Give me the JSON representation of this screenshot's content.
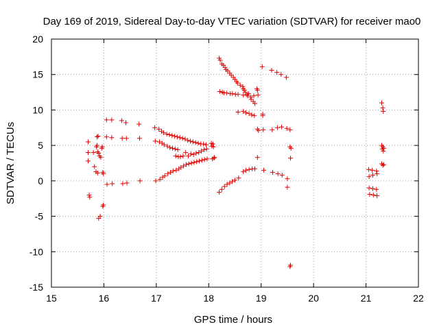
{
  "chart_data": {
    "type": "scatter",
    "title": "Day 169 of 2019, Sidereal Day-to-day VTEC variation (SDTVAR) for receiver mao0",
    "xlabel": "GPS time / hours",
    "ylabel": "SDTVAR / TECUs",
    "xlim": [
      15,
      22
    ],
    "ylim": [
      -15,
      20
    ],
    "xticks": [
      15,
      16,
      17,
      18,
      19,
      20,
      21,
      22
    ],
    "yticks": [
      -15,
      -10,
      -5,
      0,
      5,
      10,
      15,
      20
    ],
    "grid": true,
    "marker": "+",
    "series_color": "#e00000",
    "series": [
      {
        "name": "SDTVAR",
        "points": [
          [
            15.7,
            5.5
          ],
          [
            15.7,
            4.0
          ],
          [
            15.7,
            2.8
          ],
          [
            15.72,
            -2.0
          ],
          [
            15.73,
            -2.3
          ],
          [
            15.8,
            4.0
          ],
          [
            15.82,
            2.0
          ],
          [
            15.85,
            1.3
          ],
          [
            15.86,
            4.8
          ],
          [
            15.87,
            5.0
          ],
          [
            15.87,
            6.2
          ],
          [
            15.88,
            1.1
          ],
          [
            15.88,
            4.1
          ],
          [
            15.89,
            6.3
          ],
          [
            15.9,
            3.9
          ],
          [
            15.9,
            -5.3
          ],
          [
            15.92,
            3.5
          ],
          [
            15.93,
            -5.0
          ],
          [
            15.94,
            3.3
          ],
          [
            15.96,
            4.6
          ],
          [
            15.97,
            4.8
          ],
          [
            15.98,
            1.2
          ],
          [
            15.99,
            1.0
          ],
          [
            15.98,
            -3.6
          ],
          [
            15.99,
            -3.4
          ],
          [
            16.05,
            8.6
          ],
          [
            16.05,
            6.2
          ],
          [
            16.06,
            -0.5
          ],
          [
            16.15,
            8.6
          ],
          [
            16.15,
            6.1
          ],
          [
            16.16,
            -0.4
          ],
          [
            16.34,
            8.5
          ],
          [
            16.35,
            6.0
          ],
          [
            16.36,
            -0.4
          ],
          [
            16.42,
            8.2
          ],
          [
            16.43,
            6.0
          ],
          [
            16.44,
            -0.3
          ],
          [
            16.67,
            8.0
          ],
          [
            16.68,
            6.0
          ],
          [
            16.69,
            0.0
          ],
          [
            16.97,
            7.5
          ],
          [
            16.98,
            5.6
          ],
          [
            16.99,
            0.0
          ],
          [
            17.05,
            7.3
          ],
          [
            17.06,
            5.5
          ],
          [
            17.07,
            0.2
          ],
          [
            17.1,
            7.0
          ],
          [
            17.11,
            5.3
          ],
          [
            17.12,
            0.5
          ],
          [
            17.14,
            6.8
          ],
          [
            17.15,
            5.1
          ],
          [
            17.16,
            0.7
          ],
          [
            17.2,
            6.6
          ],
          [
            17.21,
            4.9
          ],
          [
            17.22,
            1.0
          ],
          [
            17.25,
            6.5
          ],
          [
            17.26,
            4.7
          ],
          [
            17.27,
            1.2
          ],
          [
            17.3,
            6.4
          ],
          [
            17.31,
            4.6
          ],
          [
            17.32,
            1.4
          ],
          [
            17.35,
            6.3
          ],
          [
            17.36,
            4.5
          ],
          [
            17.37,
            3.5
          ],
          [
            17.38,
            1.5
          ],
          [
            17.4,
            6.2
          ],
          [
            17.41,
            4.4
          ],
          [
            17.42,
            3.4
          ],
          [
            17.43,
            1.7
          ],
          [
            17.45,
            6.1
          ],
          [
            17.46,
            3.4
          ],
          [
            17.47,
            1.9
          ],
          [
            17.5,
            6.0
          ],
          [
            17.51,
            3.5
          ],
          [
            17.52,
            2.1
          ],
          [
            17.55,
            5.9
          ],
          [
            17.56,
            4.0
          ],
          [
            17.57,
            2.3
          ],
          [
            17.6,
            5.7
          ],
          [
            17.61,
            3.5
          ],
          [
            17.62,
            2.4
          ],
          [
            17.65,
            5.6
          ],
          [
            17.66,
            3.8
          ],
          [
            17.67,
            2.5
          ],
          [
            17.7,
            5.5
          ],
          [
            17.71,
            3.7
          ],
          [
            17.72,
            2.6
          ],
          [
            17.75,
            5.4
          ],
          [
            17.76,
            3.9
          ],
          [
            17.77,
            2.7
          ],
          [
            17.8,
            5.3
          ],
          [
            17.81,
            4.0
          ],
          [
            17.82,
            2.8
          ],
          [
            17.85,
            5.2
          ],
          [
            17.86,
            4.2
          ],
          [
            17.87,
            2.9
          ],
          [
            17.9,
            5.2
          ],
          [
            17.91,
            4.4
          ],
          [
            17.92,
            3.0
          ],
          [
            17.95,
            5.1
          ],
          [
            17.96,
            4.5
          ],
          [
            17.97,
            3.1
          ],
          [
            18.05,
            5.3
          ],
          [
            18.06,
            4.9
          ],
          [
            18.07,
            3.1
          ],
          [
            18.08,
            5.2
          ],
          [
            18.09,
            4.8
          ],
          [
            18.1,
            3.2
          ],
          [
            18.11,
            3.3
          ],
          [
            18.2,
            17.3
          ],
          [
            18.22,
            17.0
          ],
          [
            18.21,
            12.6
          ],
          [
            18.2,
            -1.6
          ],
          [
            18.25,
            16.5
          ],
          [
            18.26,
            12.5
          ],
          [
            18.25,
            -1.2
          ],
          [
            18.28,
            16.3
          ],
          [
            18.29,
            12.4
          ],
          [
            18.3,
            -0.8
          ],
          [
            18.31,
            16.0
          ],
          [
            18.33,
            15.7
          ],
          [
            18.34,
            12.4
          ],
          [
            18.35,
            -0.5
          ],
          [
            18.36,
            15.5
          ],
          [
            18.4,
            15.2
          ],
          [
            18.41,
            12.3
          ],
          [
            18.4,
            -0.3
          ],
          [
            18.43,
            14.9
          ],
          [
            18.45,
            12.3
          ],
          [
            18.45,
            -0.1
          ],
          [
            18.47,
            14.6
          ],
          [
            18.5,
            14.3
          ],
          [
            18.51,
            12.2
          ],
          [
            18.5,
            0.1
          ],
          [
            18.53,
            14.0
          ],
          [
            18.55,
            13.8
          ],
          [
            18.56,
            12.2
          ],
          [
            18.56,
            9.7
          ],
          [
            18.57,
            0.4
          ],
          [
            18.6,
            13.5
          ],
          [
            18.65,
            13.3
          ],
          [
            18.66,
            13.0
          ],
          [
            18.66,
            12.1
          ],
          [
            18.66,
            9.8
          ],
          [
            18.66,
            1.3
          ],
          [
            18.68,
            12.8
          ],
          [
            18.7,
            12.5
          ],
          [
            18.71,
            9.6
          ],
          [
            18.71,
            1.5
          ],
          [
            18.73,
            12.2
          ],
          [
            18.74,
            12.0
          ],
          [
            18.76,
            12.3
          ],
          [
            18.77,
            9.5
          ],
          [
            18.77,
            1.6
          ],
          [
            18.8,
            11.8
          ],
          [
            18.81,
            11.5
          ],
          [
            18.82,
            9.3
          ],
          [
            18.83,
            1.7
          ],
          [
            18.85,
            11.2
          ],
          [
            18.86,
            12.0
          ],
          [
            18.87,
            9.2
          ],
          [
            18.88,
            1.7
          ],
          [
            18.88,
            10.9
          ],
          [
            18.92,
            13.0
          ],
          [
            18.93,
            12.8
          ],
          [
            18.94,
            12.1
          ],
          [
            18.93,
            7.3
          ],
          [
            18.93,
            3.3
          ],
          [
            18.95,
            7.1
          ],
          [
            19.02,
            16.1
          ],
          [
            19.03,
            9.4
          ],
          [
            19.04,
            7.2
          ],
          [
            19.05,
            1.5
          ],
          [
            19.03,
            9.2
          ],
          [
            19.2,
            15.6
          ],
          [
            19.21,
            7.2
          ],
          [
            19.22,
            1.2
          ],
          [
            19.3,
            15.3
          ],
          [
            19.31,
            7.5
          ],
          [
            19.32,
            1.0
          ],
          [
            19.38,
            15.0
          ],
          [
            19.39,
            7.6
          ],
          [
            19.4,
            0.8
          ],
          [
            19.48,
            14.6
          ],
          [
            19.49,
            7.4
          ],
          [
            19.5,
            0.3
          ],
          [
            19.5,
            -0.9
          ],
          [
            19.55,
            7.2
          ],
          [
            19.55,
            4.8
          ],
          [
            19.57,
            4.6
          ],
          [
            19.56,
            3.2
          ],
          [
            19.55,
            -12.1
          ],
          [
            19.56,
            -11.9
          ],
          [
            21.05,
            1.6
          ],
          [
            21.06,
            0.6
          ],
          [
            21.06,
            -1.0
          ],
          [
            21.07,
            -1.9
          ],
          [
            21.12,
            1.5
          ],
          [
            21.13,
            0.8
          ],
          [
            21.13,
            -1.1
          ],
          [
            21.14,
            -2.0
          ],
          [
            21.2,
            1.4
          ],
          [
            21.21,
            1.0
          ],
          [
            21.2,
            -1.2
          ],
          [
            21.21,
            -2.1
          ],
          [
            21.3,
            11.0
          ],
          [
            21.32,
            10.3
          ],
          [
            21.33,
            9.8
          ],
          [
            21.3,
            5.0
          ],
          [
            21.31,
            4.5
          ],
          [
            21.32,
            4.8
          ],
          [
            21.33,
            4.2
          ],
          [
            21.34,
            4.6
          ],
          [
            21.3,
            2.4
          ],
          [
            21.32,
            2.2
          ],
          [
            21.34,
            2.3
          ]
        ]
      }
    ]
  }
}
